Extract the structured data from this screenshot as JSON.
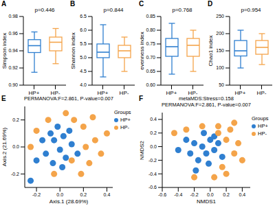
{
  "chart_data": [
    {
      "type": "box",
      "panel": "A",
      "annotations": [
        "p=0.446"
      ],
      "y_label": "Simpson index",
      "categories": [
        "HP+",
        "HP-"
      ],
      "colors": [
        "#2f7fd0",
        "#f4a44a"
      ],
      "boxes": [
        {
          "min": 0.915,
          "q1": 0.938,
          "median": 0.946,
          "q3": 0.953,
          "max": 0.962
        },
        {
          "min": 0.925,
          "q1": 0.94,
          "median": 0.95,
          "q3": 0.956,
          "max": 0.966
        }
      ],
      "ylim": [
        0.9,
        0.98
      ],
      "yticks": [
        {
          "value": 0.9,
          "label": "0.90"
        },
        0.92,
        0.94,
        0.96,
        0.98
      ]
    },
    {
      "type": "box",
      "panel": "B",
      "annotations": [
        "p=0.844"
      ],
      "y_label": "Shannon index",
      "categories": [
        "HP+",
        "HP-"
      ],
      "colors": [
        "#2f7fd0",
        "#f4a44a"
      ],
      "boxes": [
        {
          "min": 4.3,
          "q1": 5.0,
          "median": 5.2,
          "q3": 5.5,
          "max": 6.2
        },
        {
          "min": 4.5,
          "q1": 5.0,
          "median": 5.25,
          "q3": 5.45,
          "max": 5.75
        }
      ],
      "ylim": [
        4,
        6.5
      ],
      "yticks": [
        {
          "value": 4,
          "label": "4.0"
        },
        4.5,
        {
          "value": 5,
          "label": "5.0"
        },
        5.5,
        {
          "value": 6,
          "label": "6.0"
        },
        6.5
      ]
    },
    {
      "type": "box",
      "panel": "C",
      "annotations": [
        "p=0.768"
      ],
      "y_label": "evenness index",
      "categories": [
        "HP+",
        "HP-"
      ],
      "colors": [
        "#2f7fd0",
        "#f4a44a"
      ],
      "boxes": [
        {
          "min": 0.64,
          "q1": 0.705,
          "median": 0.74,
          "q3": 0.77,
          "max": 0.825
        },
        {
          "min": 0.65,
          "q1": 0.705,
          "median": 0.745,
          "q3": 0.77,
          "max": 0.8
        }
      ],
      "ylim": [
        0.6,
        0.85
      ],
      "yticks": [
        {
          "value": 0.6,
          "label": "0.60"
        },
        0.65,
        {
          "value": 0.7,
          "label": "0.70"
        },
        0.75,
        {
          "value": 0.8,
          "label": "0.80"
        },
        0.85
      ]
    },
    {
      "type": "box",
      "panel": "D",
      "annotations": [
        "p=0.954"
      ],
      "y_label": "Chao1 index",
      "categories": [
        "HP+",
        "HP-"
      ],
      "colors": [
        "#2f7fd0",
        "#f4a44a"
      ],
      "boxes": [
        {
          "min": 100,
          "q1": 135,
          "median": 150,
          "q3": 180,
          "max": 210
        },
        {
          "min": 110,
          "q1": 140,
          "median": 160,
          "q3": 180,
          "max": 200
        }
      ],
      "ylim": [
        50,
        250
      ],
      "yticks": [
        50,
        100,
        150,
        200,
        250
      ]
    },
    {
      "type": "scatter",
      "panel": "E",
      "annotations": [
        "PERMANOVA:F=2.861, P-value=0.007"
      ],
      "x_label": "Axis.1 (28.69%)",
      "y_label": "Axis.2 (21.69%)",
      "legend": "right",
      "legend_title": "Groups",
      "marker": "circle",
      "xlim": [
        -0.3,
        0.45
      ],
      "xticks": [
        -0.2,
        {
          "value": 0,
          "label": "0.0"
        },
        0.2,
        0.4
      ],
      "ylim": [
        -0.3,
        0.3
      ],
      "yticks": [
        -0.2,
        {
          "value": 0,
          "label": "0.0"
        },
        0.2
      ],
      "series": [
        {
          "name": "HP+",
          "color": "#2f7fd0",
          "x": [
            -0.05,
            0.0,
            -0.08,
            0.03,
            -0.12,
            0.05,
            -0.02,
            0.1,
            -0.15,
            0.02,
            -0.2,
            0.08,
            -0.06,
            0.15,
            -0.25
          ],
          "y": [
            0.05,
            -0.02,
            0.1,
            0.08,
            -0.05,
            -0.08,
            0.15,
            0.02,
            0.05,
            -0.15,
            -0.1,
            0.12,
            -0.12,
            -0.05,
            -0.25
          ]
        },
        {
          "name": "HP-",
          "color": "#f4a44a",
          "x": [
            0.2,
            0.3,
            0.35,
            0.25,
            0.12,
            -0.1,
            -0.2,
            0.4,
            0.18,
            0.05,
            -0.25,
            0.28,
            0.1,
            -0.05,
            0.22
          ],
          "y": [
            0.15,
            0.05,
            -0.05,
            -0.12,
            0.2,
            0.2,
            0.12,
            0.1,
            -0.2,
            0.25,
            0.0,
            0.22,
            -0.1,
            -0.2,
            0.0
          ]
        }
      ]
    },
    {
      "type": "scatter",
      "panel": "F",
      "annotations": [
        "metaMDS:Stress=0.158",
        "PERMANOVA:F=2.861, P-value=0.007"
      ],
      "x_label": "NMDS1",
      "y_label": "NMDS2",
      "legend": "right",
      "legend_title": "Groups",
      "marker": "circle",
      "xlim": [
        -0.6,
        0.5
      ],
      "xticks": [
        -0.6,
        -0.4,
        -0.2,
        {
          "value": 0,
          "label": "0.0"
        },
        0.2,
        0.4
      ],
      "ylim": [
        -0.6,
        0.5
      ],
      "yticks": [
        -0.6,
        -0.4,
        -0.2,
        {
          "value": 0,
          "label": "0.0"
        },
        0.2,
        0.4
      ],
      "series": [
        {
          "name": "HP+",
          "color": "#2f7fd0",
          "x": [
            -0.1,
            -0.05,
            -0.2,
            0.0,
            -0.15,
            0.05,
            -0.25,
            -0.08,
            0.1,
            -0.3,
            -0.02,
            0.15,
            -0.18,
            0.05,
            -0.4
          ],
          "y": [
            0.0,
            -0.1,
            0.05,
            0.1,
            -0.2,
            -0.05,
            -0.1,
            0.2,
            0.05,
            0.1,
            -0.25,
            -0.15,
            -0.35,
            0.15,
            -0.05
          ]
        },
        {
          "name": "HP-",
          "color": "#f4a44a",
          "x": [
            0.2,
            0.3,
            0.25,
            0.1,
            -0.1,
            0.35,
            0.15,
            -0.3,
            0.4,
            0.2,
            -0.45,
            0.05,
            0.3,
            -0.2,
            0.1
          ],
          "y": [
            0.1,
            -0.1,
            0.25,
            0.3,
            0.3,
            0.05,
            -0.3,
            0.25,
            -0.2,
            -0.4,
            0.2,
            -0.45,
            0.35,
            -0.45,
            0.2
          ]
        }
      ]
    }
  ]
}
